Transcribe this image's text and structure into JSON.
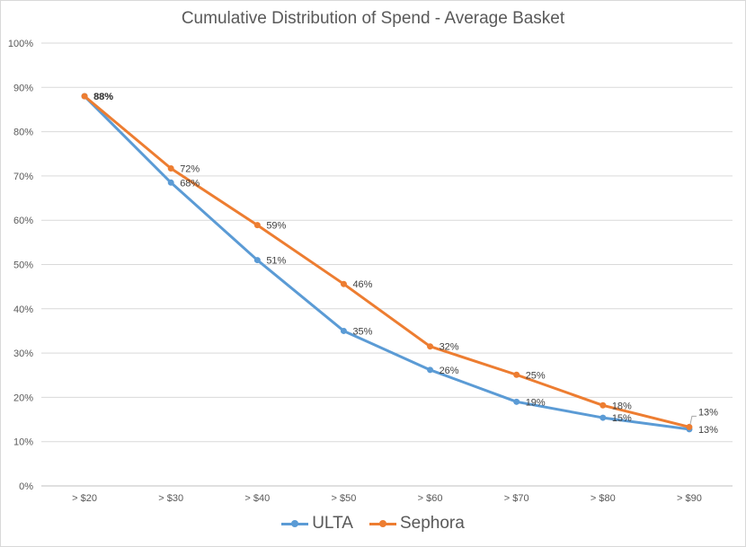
{
  "chart_data": {
    "type": "line",
    "title": "Cumulative Distribution of Spend - Average Basket",
    "xlabel": "",
    "ylabel": "",
    "categories": [
      "> $20",
      "> $30",
      "> $40",
      "> $50",
      "> $60",
      "> $70",
      "> $80",
      "> $90"
    ],
    "ylim": [
      0,
      100
    ],
    "yticks": [
      "0%",
      "10%",
      "20%",
      "30%",
      "40%",
      "50%",
      "60%",
      "70%",
      "80%",
      "90%",
      "100%"
    ],
    "grid": true,
    "legend_position": "bottom",
    "series": [
      {
        "name": "ULTA",
        "color": "#5b9bd5",
        "values": [
          88,
          68.5,
          51,
          35,
          26.2,
          19,
          15.4,
          12.8
        ],
        "labels": [
          "88%",
          "68%",
          "51%",
          "35%",
          "26%",
          "19%",
          "15%",
          "13%"
        ]
      },
      {
        "name": "Sephora",
        "color": "#ed7d31",
        "values": [
          88,
          71.7,
          58.9,
          45.6,
          31.5,
          25.1,
          18.2,
          13.3
        ],
        "labels": [
          "88%",
          "72%",
          "59%",
          "46%",
          "32%",
          "25%",
          "18%",
          "13%"
        ]
      }
    ]
  }
}
